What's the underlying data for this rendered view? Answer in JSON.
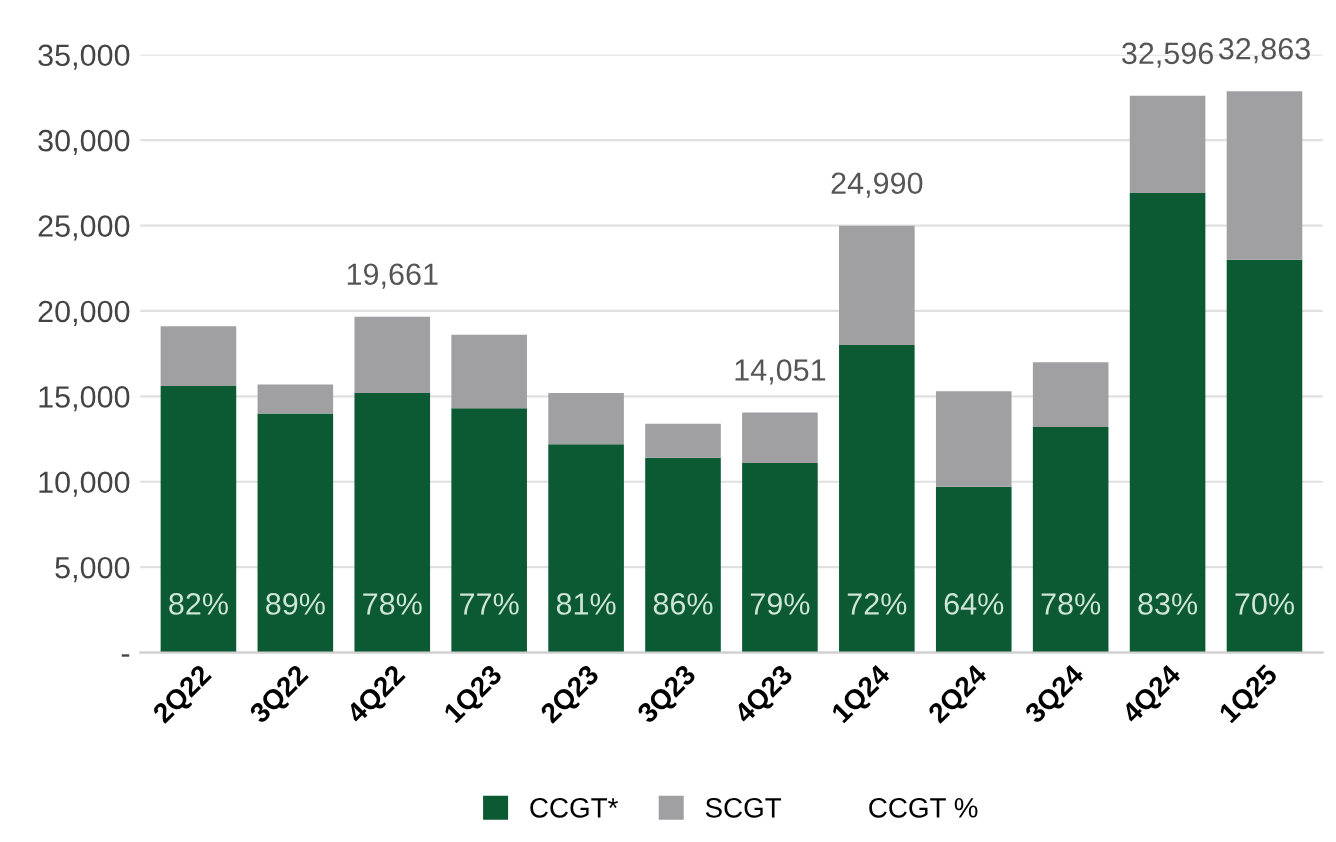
{
  "chart_data": {
    "type": "bar",
    "stacked": true,
    "categories": [
      "2Q22",
      "3Q22",
      "4Q22",
      "1Q23",
      "2Q23",
      "3Q23",
      "4Q23",
      "1Q24",
      "2Q24",
      "3Q24",
      "4Q24",
      "1Q25"
    ],
    "series": [
      {
        "name": "CCGT*",
        "color": "#0b5a34",
        "values": [
          15600,
          14000,
          15200,
          14300,
          12200,
          11400,
          11100,
          18000,
          9700,
          13200,
          26900,
          23000
        ]
      },
      {
        "name": "SCGT",
        "color": "#a0a0a2",
        "values": [
          3500,
          1700,
          4461,
          4300,
          3000,
          2000,
          2951,
          6990,
          5600,
          3800,
          5696,
          9863
        ]
      }
    ],
    "totals": [
      null,
      null,
      "19,661",
      null,
      null,
      null,
      "14,051",
      "24,990",
      null,
      null,
      "32,596",
      "32,863"
    ],
    "annotations": [
      "CCGT %",
      "82%",
      "89%",
      "78%",
      "77%",
      "81%",
      "86%",
      "79%",
      "72%",
      "64%",
      "78%",
      "83%",
      "70%"
    ],
    "ylim": [
      0,
      35000
    ],
    "yticks": [
      {
        "value": 0,
        "label": "-"
      },
      {
        "value": 5000,
        "label": "5,000"
      },
      {
        "value": 10000,
        "label": "10,000"
      },
      {
        "value": 15000,
        "label": "15,000"
      },
      {
        "value": 20000,
        "label": "20,000"
      },
      {
        "value": 25000,
        "label": "25,000"
      },
      {
        "value": 30000,
        "label": "30,000"
      },
      {
        "value": 35000,
        "label": "35,000"
      }
    ],
    "grid": "y",
    "legend": "bottom"
  }
}
